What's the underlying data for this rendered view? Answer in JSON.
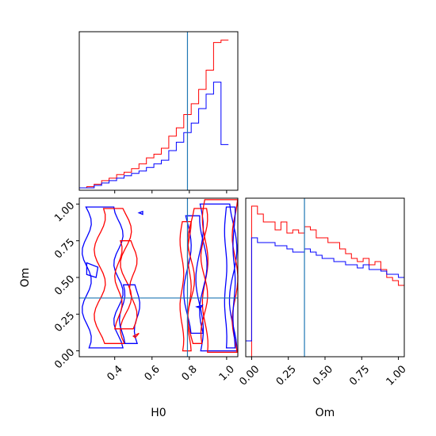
{
  "chart_data": {
    "type": "corner",
    "colors": {
      "series_a": "#ff0000",
      "series_b": "#0000ff",
      "truth": "#1f77b4"
    },
    "parameters": [
      "H0",
      "Om"
    ],
    "truths": {
      "H0": 0.79,
      "Om": 0.36
    },
    "axes": {
      "H0": {
        "range": [
          0.21,
          1.06
        ],
        "ticks": [
          0.4,
          0.6,
          0.8,
          1.0
        ],
        "tick_labels": [
          "0.4",
          "0.6",
          "0.8",
          "1.0"
        ],
        "label": "H0"
      },
      "Om": {
        "range": [
          -0.04,
          1.04
        ],
        "ticks": [
          0.0,
          0.25,
          0.5,
          0.75,
          1.0
        ],
        "tick_labels": [
          "0.00",
          "0.25",
          "0.50",
          "0.75",
          "1.00"
        ],
        "label": "Om"
      }
    },
    "hist_H0": {
      "bin_edges": [
        0.21,
        0.25,
        0.29,
        0.33,
        0.37,
        0.41,
        0.45,
        0.49,
        0.53,
        0.57,
        0.61,
        0.65,
        0.69,
        0.73,
        0.77,
        0.81,
        0.85,
        0.89,
        0.93,
        0.97,
        1.01
      ],
      "series": [
        {
          "color": "red",
          "values": [
            2,
            3,
            5,
            8,
            10,
            13,
            15,
            18,
            22,
            27,
            30,
            35,
            45,
            52,
            63,
            72,
            84,
            100,
            123,
            125
          ]
        },
        {
          "color": "blue",
          "values": [
            2,
            2,
            4,
            6,
            8,
            10,
            12,
            14,
            16,
            19,
            22,
            25,
            33,
            40,
            48,
            56,
            68,
            80,
            90,
            38
          ]
        }
      ]
    },
    "hist_Om": {
      "bin_edges": [
        -0.04,
        0.0,
        0.04,
        0.08,
        0.12,
        0.16,
        0.2,
        0.24,
        0.28,
        0.32,
        0.36,
        0.4,
        0.44,
        0.48,
        0.52,
        0.56,
        0.6,
        0.64,
        0.68,
        0.72,
        0.76,
        0.8,
        0.84,
        0.88,
        0.92,
        0.96,
        1.0,
        1.04
      ],
      "series": [
        {
          "color": "red",
          "values": [
            0,
            95,
            90,
            85,
            85,
            80,
            85,
            78,
            80,
            78,
            82,
            80,
            75,
            75,
            72,
            72,
            68,
            65,
            62,
            60,
            62,
            58,
            60,
            55,
            50,
            48,
            45,
            0
          ]
        },
        {
          "color": "blue",
          "values": [
            10,
            75,
            72,
            72,
            72,
            70,
            70,
            68,
            66,
            66,
            68,
            66,
            64,
            62,
            62,
            60,
            60,
            58,
            58,
            56,
            58,
            55,
            55,
            54,
            52,
            52,
            50,
            20
          ]
        }
      ]
    }
  }
}
